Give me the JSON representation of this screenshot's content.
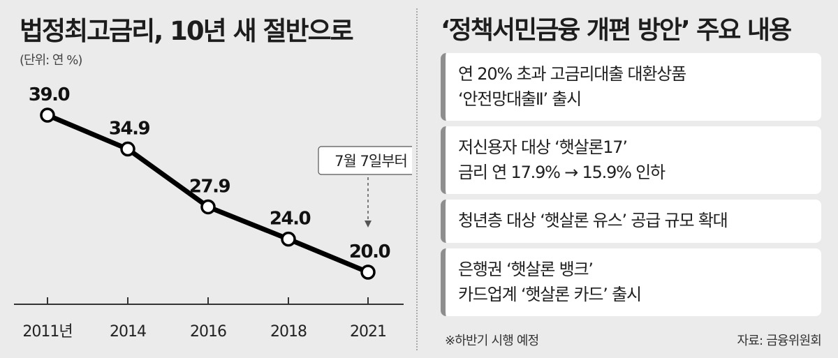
{
  "left_panel": {
    "title": "법정최고금리, 10년 새 절반으로",
    "unit": "(단위: 연 %)"
  },
  "chart_data": {
    "type": "line",
    "title": "법정최고금리, 10년 새 절반으로",
    "unit": "(단위: 연 %)",
    "x": [
      "2011년",
      "2014",
      "2016",
      "2018",
      "2021"
    ],
    "values": [
      39.0,
      34.9,
      27.9,
      24.0,
      20.0
    ],
    "value_labels": [
      "39.0",
      "34.9",
      "27.9",
      "24.0",
      "20.0"
    ],
    "annotation": {
      "text": "7월 7일부터",
      "target": "2021"
    },
    "grid": false,
    "colors": {
      "line": "#000000",
      "marker_fill": "#ffffff",
      "axis": "#333333"
    }
  },
  "right_panel": {
    "title": "‘정책서민금융 개편 방안’ 주요 내용",
    "items": [
      {
        "lines": [
          "연 20% 초과 고금리대출 대환상품",
          "‘안전망대출Ⅱ’ 출시"
        ]
      },
      {
        "lines": [
          "저신용자 대상 ‘햇살론17’",
          "금리 연 17.9% → 15.9% 인하"
        ]
      },
      {
        "lines": [
          "청년층 대상 ‘햇살론 유스’ 공급 규모 확대"
        ]
      },
      {
        "lines": [
          "은행권 ‘햇살론 뱅크’",
          "카드업계 ‘햇살론 카드’ 출시"
        ]
      }
    ],
    "footnote": "※하반기 시행 예정",
    "source": "자료: 금융위원회"
  }
}
